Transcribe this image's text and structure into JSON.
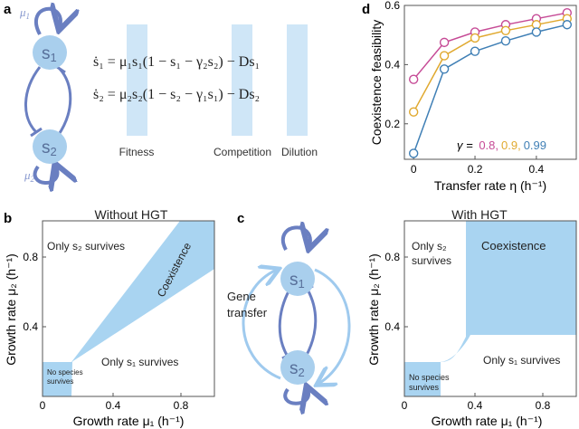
{
  "colors": {
    "node": "#a9cfed",
    "node_text": "#58709a",
    "loop": "#6a7fc1",
    "edge": "#6a7fc1",
    "highlight": "#cfe6f7",
    "region": "#a9d4f1",
    "gamma_08": "#c64b96",
    "gamma_09": "#e0a92f",
    "gamma_099": "#3f7fb5"
  },
  "panel_a": {
    "label": "a",
    "mu1": "μ",
    "mu1_sub": "1",
    "mu2": "μ",
    "mu2_sub": "2",
    "s1": "s",
    "s1_sub": "1",
    "s2": "s",
    "s2_sub": "2",
    "eq1": "ṡ₁ = μ₁s₁(1 − s₁ − γ₂s₂) − Ds₁",
    "eq2": "ṡ₂ = μ₂s₂(1 − s₂ − γ₁s₁) − Ds₂",
    "labels": [
      "Fitness",
      "Competition",
      "Dilution"
    ]
  },
  "panel_b": {
    "label": "b",
    "title": "Without HGT",
    "regions": {
      "only_s2": "Only s₂ survives",
      "coexistence": "Coexistence",
      "only_s1": "Only s₁ survives",
      "no_species_1": "No species",
      "no_species_2": "survives"
    },
    "xlabel": "Growth rate μ₁ (h⁻¹)",
    "ylabel": "Growth rate μ₂ (h⁻¹)",
    "xticks": [
      "0",
      "0.4",
      "0.8"
    ],
    "yticks": [
      "0.4",
      "0.8"
    ]
  },
  "panel_c": {
    "label": "c",
    "title": "With HGT",
    "gene_1": "Gene",
    "gene_2": "transfer",
    "s1": "s",
    "s1_sub": "1",
    "s2": "s",
    "s2_sub": "2",
    "regions": {
      "only_s2_1": "Only s₂",
      "only_s2_2": "survives",
      "coexistence": "Coexistence",
      "only_s1": "Only s₁ survives",
      "no_species_1": "No species",
      "no_species_2": "survives"
    },
    "xlabel": "Growth rate μ₁ (h⁻¹)",
    "ylabel": "Growth rate μ₂ (h⁻¹)",
    "xticks": [
      "0",
      "0.4",
      "0.8"
    ],
    "yticks": [
      "0.4",
      "0.8"
    ]
  },
  "chart_data": {
    "type": "line",
    "panel_label": "d",
    "title": "",
    "xlabel": "Transfer rate η (h⁻¹)",
    "ylabel": "Coexistence feasibility",
    "x": [
      0,
      0.1,
      0.2,
      0.3,
      0.4,
      0.5
    ],
    "xlim": [
      -0.03,
      0.53
    ],
    "ylim": [
      0.08,
      0.6
    ],
    "xticks": [
      0,
      0.2,
      0.4
    ],
    "yticks": [
      0.2,
      0.4,
      0.6
    ],
    "xtick_labels": [
      "0",
      "0.2",
      "0.4"
    ],
    "ytick_labels": [
      "0.2",
      "0.4",
      "0.6"
    ],
    "legend_prefix": "γ = ",
    "series": [
      {
        "name": "0.8",
        "label": "0.8,",
        "color": "#c64b96",
        "values": [
          0.35,
          0.475,
          0.51,
          0.535,
          0.555,
          0.575
        ]
      },
      {
        "name": "0.9",
        "label": "0.9,",
        "color": "#e0a92f",
        "values": [
          0.24,
          0.43,
          0.49,
          0.515,
          0.535,
          0.555
        ]
      },
      {
        "name": "0.99",
        "label": "0.99",
        "color": "#3f7fb5",
        "values": [
          0.1,
          0.385,
          0.445,
          0.48,
          0.51,
          0.535
        ]
      }
    ]
  }
}
